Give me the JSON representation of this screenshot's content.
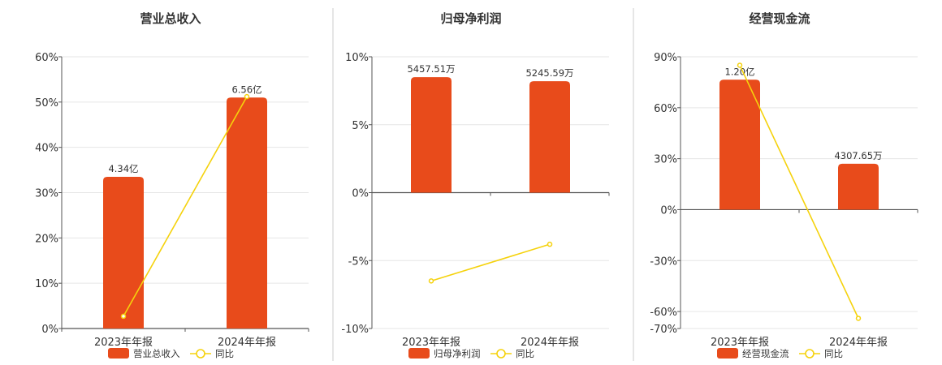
{
  "colors": {
    "bar": "#E84B1B",
    "line": "#F5D20C",
    "axis": "#555555",
    "grid": "#E6E6E6",
    "divider": "#CCCCCC"
  },
  "chart_data": [
    {
      "type": "bar",
      "title": "营业总收入",
      "categories": [
        "2023年年报",
        "2024年年报"
      ],
      "bar_series_name": "营业总收入",
      "line_series_name": "同比",
      "bar_labels": [
        "4.34亿",
        "6.56亿"
      ],
      "bar_values_pct": [
        33.5,
        51.0
      ],
      "line_values_pct": [
        2.7,
        51.2
      ],
      "yticks": [
        "60%",
        "50%",
        "40%",
        "30%",
        "20%",
        "10%",
        "0%"
      ],
      "ylim": [
        0,
        60
      ]
    },
    {
      "type": "bar",
      "title": "归母净利润",
      "categories": [
        "2023年年报",
        "2024年年报"
      ],
      "bar_series_name": "归母净利润",
      "line_series_name": "同比",
      "bar_labels": [
        "5457.51万",
        "5245.59万"
      ],
      "bar_values_pct": [
        8.5,
        8.2
      ],
      "line_values_pct": [
        -6.5,
        -3.8
      ],
      "yticks": [
        "10%",
        "5%",
        "0%",
        "-5%",
        "-10%"
      ],
      "ylim": [
        -10,
        10
      ]
    },
    {
      "type": "bar",
      "title": "经营现金流",
      "categories": [
        "2023年年报",
        "2024年年报"
      ],
      "bar_series_name": "经营现金流",
      "line_series_name": "同比",
      "bar_labels": [
        "1.20亿",
        "4307.65万"
      ],
      "bar_values_pct": [
        76.5,
        27.0
      ],
      "line_values_pct": [
        85.0,
        -64.0
      ],
      "yticks": [
        "90%",
        "60%",
        "30%",
        "0%",
        "-30%",
        "-60%",
        "-70%"
      ],
      "ylim": [
        -70,
        90
      ]
    }
  ]
}
